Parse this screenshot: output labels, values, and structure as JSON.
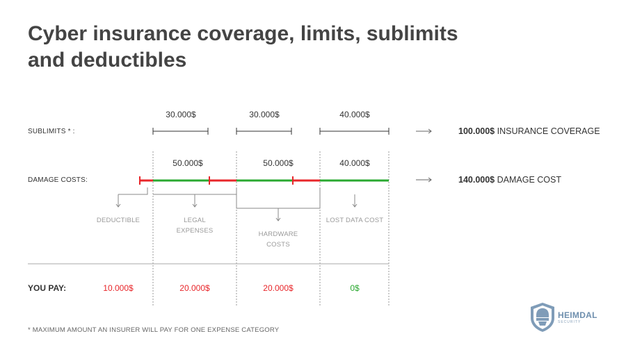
{
  "title_lines": [
    "Cyber insurance coverage, limits, sublimits",
    "and deductibles"
  ],
  "rows": {
    "sublimits_label": "SUBLIMITS * :",
    "damage_label": "DAMAGE COSTS:",
    "you_pay_label": "YOU PAY:"
  },
  "sublimits": [
    "30.000$",
    "30.000$",
    "40.000$"
  ],
  "damage_costs": [
    "50.000$",
    "50.000$",
    "40.000$"
  ],
  "categories": {
    "deductible": [
      "DEDUCTIBLE"
    ],
    "legal": [
      "LEGAL",
      "EXPENSES"
    ],
    "hardware": [
      "HARDWARE",
      "COSTS"
    ],
    "lost_data": [
      "LOST DATA COST"
    ]
  },
  "summary": {
    "coverage_value": "100.000$",
    "coverage_text": "INSURANCE COVERAGE",
    "damage_value": "140.000$",
    "damage_text": "DAMAGE COST",
    "arrow": "⟶"
  },
  "you_pay": [
    "10.000$",
    "20.000$",
    "20.000$",
    "0$"
  ],
  "footnote": "* MAXIMUM AMOUNT AN INSURER WILL PAY FOR ONE EXPENSE CATEGORY",
  "logo": {
    "name": "HEIMDAL",
    "sub": "SECURITY",
    "icon": "heimdal-helmet-shield-icon"
  },
  "colors": {
    "covered": "#2aa830",
    "uncovered": "#e8262a",
    "pay_red": "#e8262a",
    "pay_green": "#2aa830",
    "title": "#444444"
  }
}
